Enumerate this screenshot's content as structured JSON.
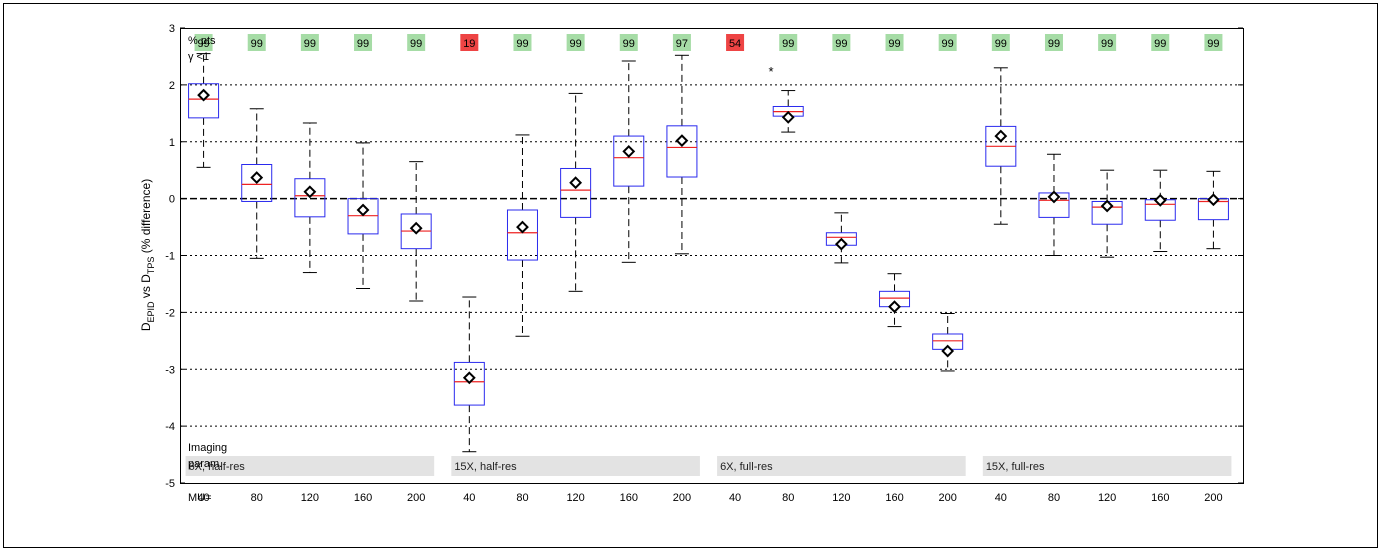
{
  "chart_data": {
    "type": "box",
    "ylabel_main_1": "D",
    "ylabel_sub_1": "EPID",
    "ylabel_main_2": " vs D",
    "ylabel_sub_2": "TPS",
    "ylabel_main_3": " (% difference)",
    "ylim": [
      -5,
      3
    ],
    "yticks": [
      "-5",
      "-4",
      "-3",
      "-2",
      "-1",
      "0",
      "1",
      "2",
      "3"
    ],
    "grid_y": [
      -4,
      -3,
      -2,
      -1,
      1,
      2
    ],
    "zero_line": 0,
    "pts_label_1": "% pts",
    "pts_label_2": "γ <1",
    "imaging_label_1": "Imaging",
    "imaging_label_2": "param.",
    "mu_label": "MU=",
    "star_label": "*",
    "groups": [
      {
        "label": "6X, half-res",
        "mu": [
          "40",
          "80",
          "120",
          "160",
          "200"
        ]
      },
      {
        "label": "15X, half-res",
        "mu": [
          "40",
          "80",
          "120",
          "160",
          "200"
        ]
      },
      {
        "label": "6X, full-res",
        "mu": [
          "40",
          "80",
          "120",
          "160",
          "200"
        ]
      },
      {
        "label": "15X, full-res",
        "mu": [
          "40",
          "80",
          "120",
          "160",
          "200"
        ]
      }
    ],
    "boxes": [
      {
        "pct": "99",
        "pass": true,
        "wlo": 0.55,
        "q1": 1.42,
        "med": 1.75,
        "q3": 2.02,
        "whi": 2.55,
        "mean": 1.82
      },
      {
        "pct": "99",
        "pass": true,
        "wlo": -1.05,
        "q1": -0.05,
        "med": 0.25,
        "q3": 0.6,
        "whi": 1.58,
        "mean": 0.37
      },
      {
        "pct": "99",
        "pass": true,
        "wlo": -1.3,
        "q1": -0.32,
        "med": 0.05,
        "q3": 0.35,
        "whi": 1.33,
        "mean": 0.12
      },
      {
        "pct": "99",
        "pass": true,
        "wlo": -1.58,
        "q1": -0.62,
        "med": -0.3,
        "q3": 0.0,
        "whi": 0.98,
        "mean": -0.2
      },
      {
        "pct": "99",
        "pass": true,
        "wlo": -1.8,
        "q1": -0.88,
        "med": -0.57,
        "q3": -0.27,
        "whi": 0.65,
        "mean": -0.52
      },
      {
        "pct": "19",
        "pass": false,
        "wlo": -4.45,
        "q1": -3.63,
        "med": -3.22,
        "q3": -2.88,
        "whi": -1.73,
        "mean": -3.15
      },
      {
        "pct": "99",
        "pass": true,
        "wlo": -2.42,
        "q1": -1.08,
        "med": -0.6,
        "q3": -0.2,
        "whi": 1.12,
        "mean": -0.5
      },
      {
        "pct": "99",
        "pass": true,
        "wlo": -1.63,
        "q1": -0.33,
        "med": 0.15,
        "q3": 0.53,
        "whi": 1.85,
        "mean": 0.28
      },
      {
        "pct": "99",
        "pass": true,
        "wlo": -1.12,
        "q1": 0.22,
        "med": 0.72,
        "q3": 1.1,
        "whi": 2.42,
        "mean": 0.83
      },
      {
        "pct": "97",
        "pass": true,
        "wlo": -0.97,
        "q1": 0.38,
        "med": 0.9,
        "q3": 1.28,
        "whi": 2.52,
        "mean": 1.02
      },
      {
        "pct": "54",
        "pass": false,
        "wlo": null,
        "q1": null,
        "med": null,
        "q3": null,
        "whi": null,
        "mean": null
      },
      {
        "pct": "99",
        "pass": true,
        "wlo": 1.17,
        "q1": 1.45,
        "med": 1.53,
        "q3": 1.62,
        "whi": 1.9,
        "mean": 1.43
      },
      {
        "pct": "99",
        "pass": true,
        "wlo": -1.13,
        "q1": -0.82,
        "med": -0.68,
        "q3": -0.6,
        "whi": -0.25,
        "mean": -0.8
      },
      {
        "pct": "99",
        "pass": true,
        "wlo": -2.25,
        "q1": -1.9,
        "med": -1.75,
        "q3": -1.63,
        "whi": -1.32,
        "mean": -1.9
      },
      {
        "pct": "99",
        "pass": true,
        "wlo": -3.03,
        "q1": -2.65,
        "med": -2.5,
        "q3": -2.38,
        "whi": -2.02,
        "mean": -2.68
      },
      {
        "pct": "99",
        "pass": true,
        "wlo": -0.45,
        "q1": 0.57,
        "med": 0.92,
        "q3": 1.27,
        "whi": 2.3,
        "mean": 1.1
      },
      {
        "pct": "99",
        "pass": true,
        "wlo": -1.0,
        "q1": -0.33,
        "med": -0.03,
        "q3": 0.1,
        "whi": 0.78,
        "mean": 0.03
      },
      {
        "pct": "99",
        "pass": true,
        "wlo": -1.03,
        "q1": -0.45,
        "med": -0.15,
        "q3": -0.05,
        "whi": 0.5,
        "mean": -0.13
      },
      {
        "pct": "99",
        "pass": true,
        "wlo": -0.93,
        "q1": -0.38,
        "med": -0.1,
        "q3": -0.02,
        "whi": 0.5,
        "mean": -0.03
      },
      {
        "pct": "99",
        "pass": true,
        "wlo": -0.88,
        "q1": -0.37,
        "med": -0.05,
        "q3": 0.0,
        "whi": 0.48,
        "mean": -0.02
      }
    ],
    "colors": {
      "pass": "#a6dca6",
      "fail": "#ee4444",
      "box": "#2a2aee",
      "median": "#ee2222",
      "band": "#e3e3e3",
      "grid": "#000000"
    }
  }
}
